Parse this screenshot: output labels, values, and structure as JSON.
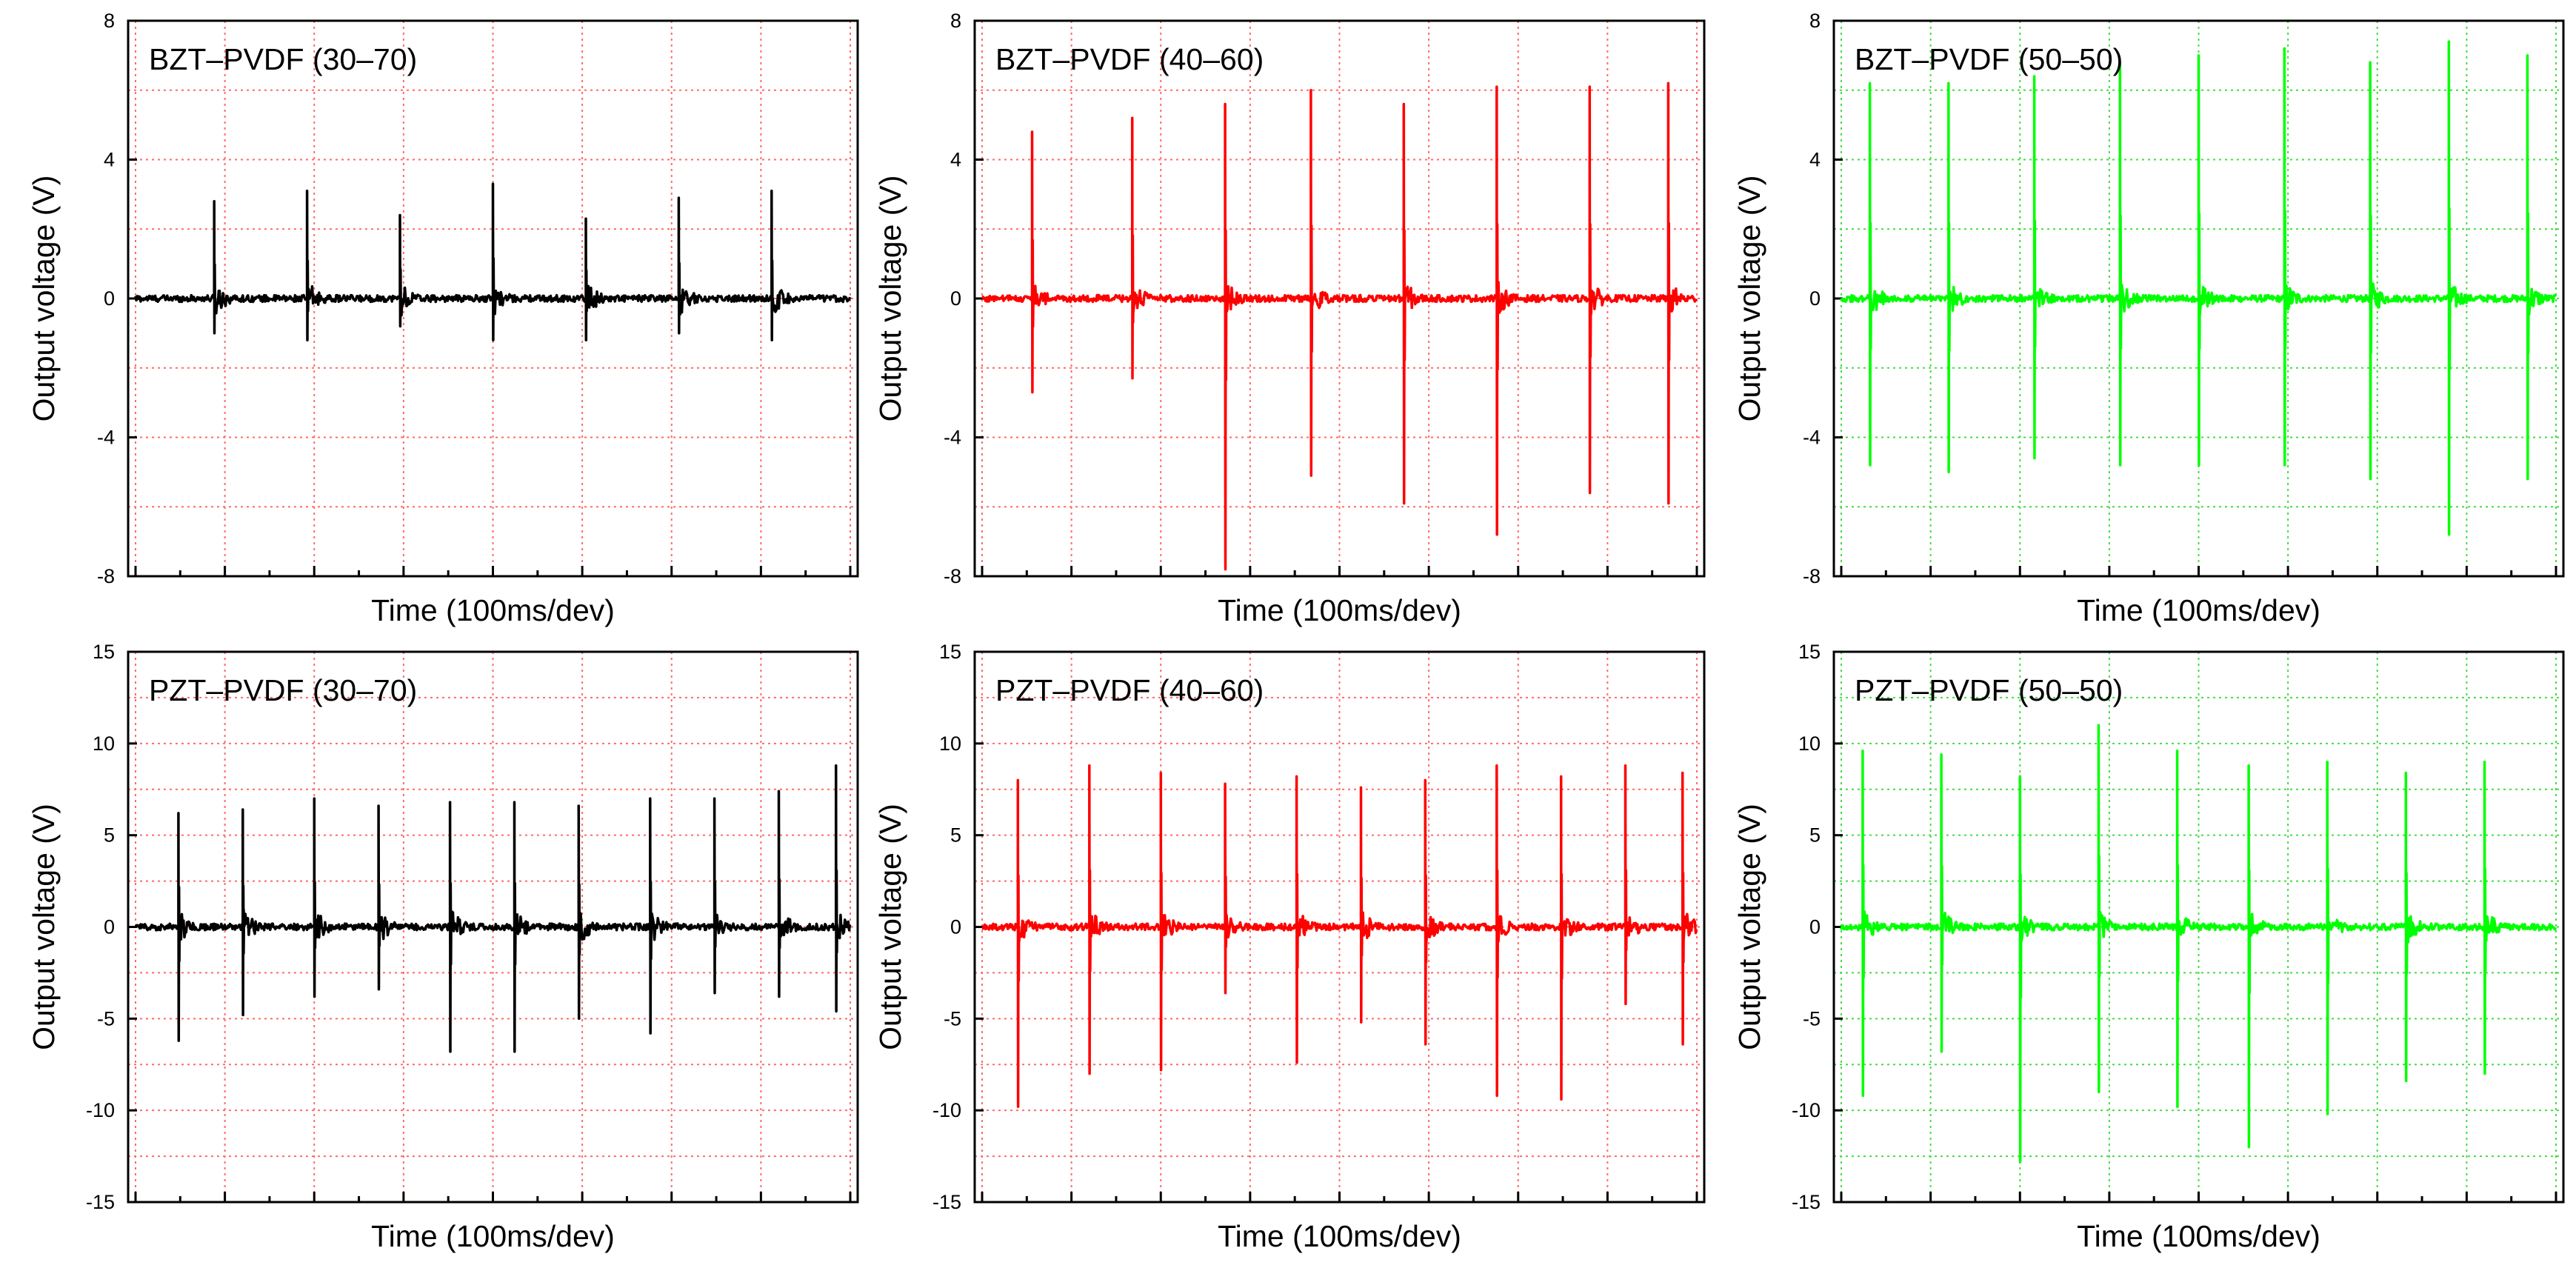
{
  "chart_data": [
    {
      "type": "line",
      "title": "BZT–PVDF (30–70)",
      "xlabel": "Time (100ms/dev)",
      "ylabel": "Output voltage (V)",
      "ylim": [
        -8,
        8
      ],
      "yticks": [
        "8",
        "4",
        "0",
        "-4",
        "-8"
      ],
      "xlim": [
        0,
        10
      ],
      "grid": true,
      "color": "#000000",
      "grid_color": "#ff6b6b",
      "spikes": [
        {
          "t": 1.1,
          "max": 2.8,
          "min": -1.0
        },
        {
          "t": 2.4,
          "max": 3.1,
          "min": -1.2
        },
        {
          "t": 3.7,
          "max": 2.4,
          "min": -0.8
        },
        {
          "t": 5.0,
          "max": 3.3,
          "min": -1.2
        },
        {
          "t": 6.3,
          "max": 2.3,
          "min": -1.2
        },
        {
          "t": 7.6,
          "max": 2.9,
          "min": -1.0
        },
        {
          "t": 8.9,
          "max": 3.1,
          "min": -1.2
        }
      ]
    },
    {
      "type": "line",
      "title": "BZT–PVDF (40–60)",
      "xlabel": "Time (100ms/dev)",
      "ylabel": "Output voltage (V)",
      "ylim": [
        -8,
        8
      ],
      "yticks": [
        "8",
        "4",
        "0",
        "-4",
        "-8"
      ],
      "xlim": [
        0,
        10
      ],
      "grid": true,
      "color": "#ff0000",
      "grid_color": "#ff6b6b",
      "spikes": [
        {
          "t": 0.7,
          "max": 4.8,
          "min": -2.7
        },
        {
          "t": 2.1,
          "max": 5.2,
          "min": -2.3
        },
        {
          "t": 3.4,
          "max": 5.6,
          "min": -7.8
        },
        {
          "t": 4.6,
          "max": 6.0,
          "min": -5.1
        },
        {
          "t": 5.9,
          "max": 5.6,
          "min": -5.9
        },
        {
          "t": 7.2,
          "max": 6.1,
          "min": -6.8
        },
        {
          "t": 8.5,
          "max": 6.1,
          "min": -5.6
        },
        {
          "t": 9.6,
          "max": 6.2,
          "min": -5.9
        }
      ]
    },
    {
      "type": "line",
      "title": "BZT–PVDF (50–50)",
      "xlabel": "Time (100ms/dev)",
      "ylabel": "Output voltage (V)",
      "ylim": [
        -8,
        8
      ],
      "yticks": [
        "8",
        "4",
        "0",
        "-4",
        "-8"
      ],
      "xlim": [
        0,
        10
      ],
      "grid": true,
      "color": "#00ff00",
      "grid_color": "#44dd44",
      "spikes": [
        {
          "t": 0.4,
          "max": 6.2,
          "min": -4.8
        },
        {
          "t": 1.5,
          "max": 6.2,
          "min": -5.0
        },
        {
          "t": 2.7,
          "max": 6.4,
          "min": -4.6
        },
        {
          "t": 3.9,
          "max": 6.8,
          "min": -4.8
        },
        {
          "t": 5.0,
          "max": 7.0,
          "min": -4.8
        },
        {
          "t": 6.2,
          "max": 7.2,
          "min": -4.8
        },
        {
          "t": 7.4,
          "max": 6.8,
          "min": -5.2
        },
        {
          "t": 8.5,
          "max": 7.4,
          "min": -6.8
        },
        {
          "t": 9.6,
          "max": 7.0,
          "min": -5.2
        }
      ]
    },
    {
      "type": "line",
      "title": "PZT–PVDF (30–70)",
      "xlabel": "Time (100ms/dev)",
      "ylabel": "Output voltage (V)",
      "ylim": [
        -15,
        15
      ],
      "yticks": [
        "15",
        "10",
        "5",
        "0",
        "-5",
        "-10",
        "-15"
      ],
      "xlim": [
        0,
        10
      ],
      "grid": true,
      "color": "#000000",
      "grid_color": "#ff6b6b",
      "spikes": [
        {
          "t": 0.6,
          "max": 6.2,
          "min": -6.2
        },
        {
          "t": 1.5,
          "max": 6.4,
          "min": -4.8
        },
        {
          "t": 2.5,
          "max": 7.0,
          "min": -3.8
        },
        {
          "t": 3.4,
          "max": 6.6,
          "min": -3.4
        },
        {
          "t": 4.4,
          "max": 6.8,
          "min": -6.8
        },
        {
          "t": 5.3,
          "max": 6.8,
          "min": -6.8
        },
        {
          "t": 6.2,
          "max": 6.6,
          "min": -5.0
        },
        {
          "t": 7.2,
          "max": 7.0,
          "min": -5.8
        },
        {
          "t": 8.1,
          "max": 7.0,
          "min": -3.6
        },
        {
          "t": 9.0,
          "max": 7.4,
          "min": -3.8
        },
        {
          "t": 9.8,
          "max": 8.8,
          "min": -4.6
        }
      ]
    },
    {
      "type": "line",
      "title": "PZT–PVDF (40–60)",
      "xlabel": "Time (100ms/dev)",
      "ylabel": "Output voltage (V)",
      "ylim": [
        -15,
        15
      ],
      "yticks": [
        "15",
        "10",
        "5",
        "0",
        "-5",
        "-10",
        "-15"
      ],
      "xlim": [
        0,
        10
      ],
      "grid": true,
      "color": "#ff0000",
      "grid_color": "#ff6b6b",
      "spikes": [
        {
          "t": 0.5,
          "max": 8.0,
          "min": -9.8
        },
        {
          "t": 1.5,
          "max": 8.8,
          "min": -8.0
        },
        {
          "t": 2.5,
          "max": 8.4,
          "min": -7.8
        },
        {
          "t": 3.4,
          "max": 7.8,
          "min": -3.6
        },
        {
          "t": 4.4,
          "max": 8.2,
          "min": -7.4
        },
        {
          "t": 5.3,
          "max": 7.6,
          "min": -5.2
        },
        {
          "t": 6.2,
          "max": 8.0,
          "min": -6.4
        },
        {
          "t": 7.2,
          "max": 8.8,
          "min": -9.2
        },
        {
          "t": 8.1,
          "max": 8.2,
          "min": -9.4
        },
        {
          "t": 9.0,
          "max": 8.8,
          "min": -4.2
        },
        {
          "t": 9.8,
          "max": 8.4,
          "min": -6.4
        }
      ]
    },
    {
      "type": "line",
      "title": "PZT–PVDF (50–50)",
      "xlabel": "Time (100ms/dev)",
      "ylabel": "Output voltage (V)",
      "ylim": [
        -15,
        15
      ],
      "yticks": [
        "15",
        "10",
        "5",
        "0",
        "-5",
        "-10",
        "-15"
      ],
      "xlim": [
        0,
        10
      ],
      "grid": true,
      "color": "#00ff00",
      "grid_color": "#44dd44",
      "spikes": [
        {
          "t": 0.3,
          "max": 9.6,
          "min": -9.2
        },
        {
          "t": 1.4,
          "max": 9.4,
          "min": -6.8
        },
        {
          "t": 2.5,
          "max": 8.2,
          "min": -12.8
        },
        {
          "t": 3.6,
          "max": 11.0,
          "min": -9.0
        },
        {
          "t": 4.7,
          "max": 9.6,
          "min": -9.8
        },
        {
          "t": 5.7,
          "max": 8.8,
          "min": -12.0
        },
        {
          "t": 6.8,
          "max": 9.0,
          "min": -10.2
        },
        {
          "t": 7.9,
          "max": 8.4,
          "min": -8.4
        },
        {
          "t": 9.0,
          "max": 9.0,
          "min": -8.0
        }
      ]
    }
  ]
}
